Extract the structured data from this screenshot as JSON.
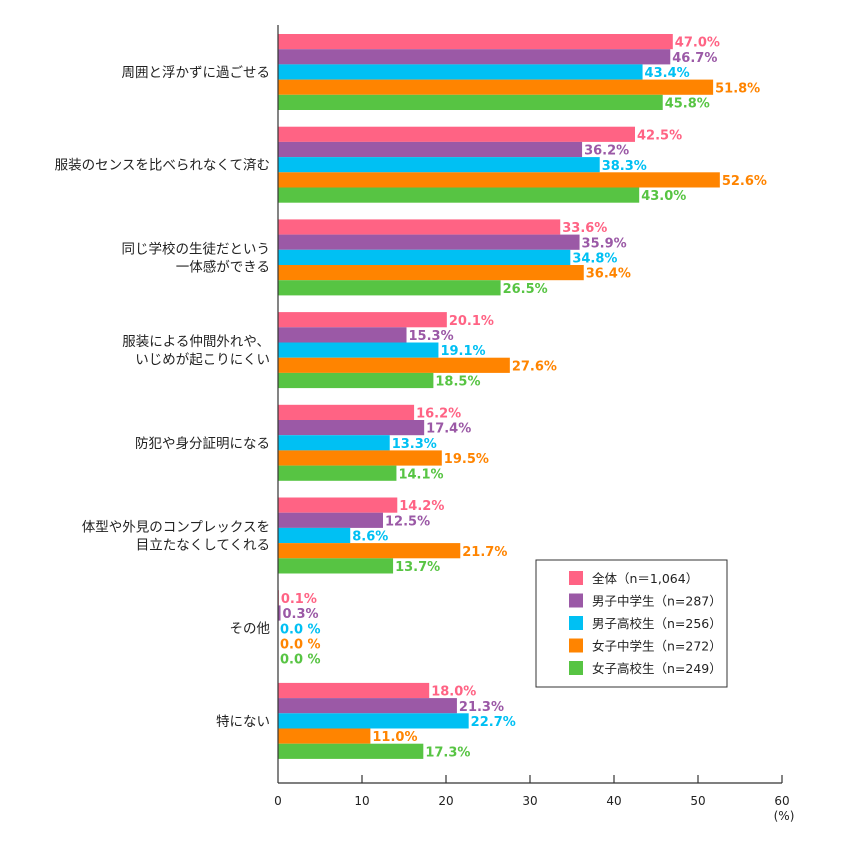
{
  "chart_data": {
    "type": "bar",
    "orientation": "horizontal",
    "title": "",
    "xlabel": "",
    "unit_label": "(%)",
    "xlim": [
      0,
      60
    ],
    "xticks": [
      0,
      10,
      20,
      30,
      40,
      50,
      60
    ],
    "grid": false,
    "legend_position": "bottom-right",
    "categories": [
      [
        "周囲と浮かずに過ごせる"
      ],
      [
        "服装のセンスを比べられなくて済む"
      ],
      [
        "同じ学校の生徒だという",
        "一体感ができる"
      ],
      [
        "服装による仲間外れや、",
        "いじめが起こりにくい"
      ],
      [
        "防犯や身分証明になる"
      ],
      [
        "体型や外見のコンプレックスを",
        "目立たなくしてくれる"
      ],
      [
        "その他"
      ],
      [
        "特にない"
      ]
    ],
    "series": [
      {
        "name": "全体（n＝1,064）",
        "color": "#ff6384",
        "values": [
          47.0,
          42.5,
          33.6,
          20.1,
          16.2,
          14.2,
          0.1,
          18.0
        ],
        "labels": [
          "47.0%",
          "42.5%",
          "33.6%",
          "20.1%",
          "16.2%",
          "14.2%",
          "0.1%",
          "18.0%"
        ]
      },
      {
        "name": "男子中学生（n=287）",
        "color": "#9b59a6",
        "values": [
          46.7,
          36.2,
          35.9,
          15.3,
          17.4,
          12.5,
          0.3,
          21.3
        ],
        "labels": [
          "46.7%",
          "36.2%",
          "35.9%",
          "15.3%",
          "17.4%",
          "12.5%",
          "0.3%",
          "21.3%"
        ]
      },
      {
        "name": "男子高校生（n=256）",
        "color": "#00c0f3",
        "values": [
          43.4,
          38.3,
          34.8,
          19.1,
          13.3,
          8.6,
          0.0,
          22.7
        ],
        "labels": [
          "43.4%",
          "38.3%",
          "34.8%",
          "19.1%",
          "13.3%",
          "8.6%",
          "0.0 %",
          "22.7%"
        ]
      },
      {
        "name": "女子中学生（n=272）",
        "color": "#ff8400",
        "values": [
          51.8,
          52.6,
          36.4,
          27.6,
          19.5,
          21.7,
          0.0,
          11.0
        ],
        "labels": [
          "51.8%",
          "52.6%",
          "36.4%",
          "27.6%",
          "19.5%",
          "21.7%",
          "0.0 %",
          "11.0%"
        ]
      },
      {
        "name": "女子高校生（n=249）",
        "color": "#57c443",
        "values": [
          45.8,
          43.0,
          26.5,
          18.5,
          14.1,
          13.7,
          0.0,
          17.3
        ],
        "labels": [
          "45.8%",
          "43.0%",
          "26.5%",
          "18.5%",
          "14.1%",
          "13.7%",
          "0.0 %",
          "17.3%"
        ]
      }
    ]
  }
}
